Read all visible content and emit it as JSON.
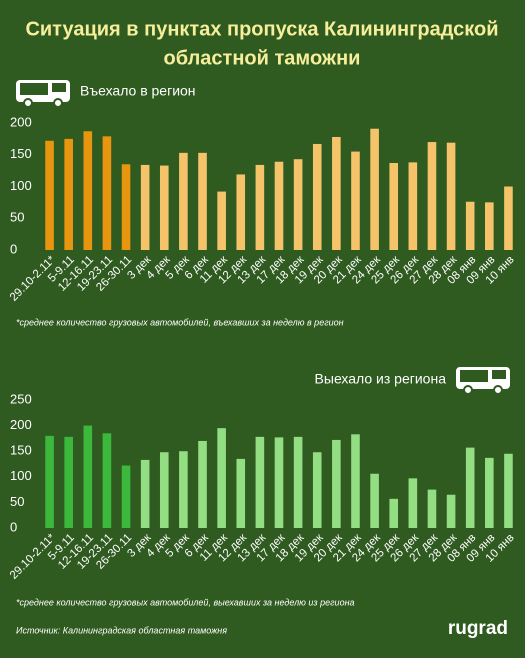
{
  "title_line1": "Ситуация в пунктах пропуска Калининградской",
  "title_line2": "областной таможни",
  "source": "Источник: Калининградская областная таможня",
  "logo": "rugrad",
  "chart_data": [
    {
      "type": "bar",
      "title": "Въехало в регион",
      "note": "*среднее количество грузовых автомобилей, въехавших за неделю в регион",
      "categories": [
        "29.10-2.11*",
        "5-9.11",
        "12-16.11",
        "19-23.11",
        "26-30.11",
        "3 дек",
        "4 дек",
        "5 дек",
        "6 дек",
        "11 дек",
        "12 дек",
        "13 дек",
        "17 дек",
        "18 дек",
        "19 дек",
        "20 дек",
        "21 дек",
        "24 дек",
        "25 дек",
        "26 дек",
        "27 дек",
        "28 дек",
        "08 янв",
        "09 янв",
        "10 янв"
      ],
      "values": [
        172,
        175,
        187,
        179,
        135,
        134,
        133,
        153,
        153,
        92,
        119,
        134,
        139,
        143,
        167,
        178,
        155,
        191,
        137,
        138,
        170,
        169,
        76,
        75,
        100
      ],
      "colors": [
        "#e8950f",
        "#e8950f",
        "#e8950f",
        "#e8950f",
        "#e8950f",
        "#f5c46a",
        "#f5c46a",
        "#f5c46a",
        "#f5c46a",
        "#f5c46a",
        "#f5c46a",
        "#f5c46a",
        "#f5c46a",
        "#f5c46a",
        "#f5c46a",
        "#f5c46a",
        "#f5c46a",
        "#f5c46a",
        "#f5c46a",
        "#f5c46a",
        "#f5c46a",
        "#f5c46a",
        "#f5c46a",
        "#f5c46a",
        "#f5c46a"
      ],
      "ylim": [
        0,
        200
      ],
      "yticks": [
        0,
        50,
        100,
        150,
        200
      ]
    },
    {
      "type": "bar",
      "title": "Выехало из региона",
      "note": "*среднее количество грузовых автомобилей, выехавших за неделю из региона",
      "categories": [
        "29.10-2.11*",
        "5-9.11",
        "12-16.11",
        "19-23.11",
        "26-30.11",
        "3 дек",
        "4 дек",
        "5 дек",
        "6 дек",
        "11 дек",
        "12 дек",
        "13 дек",
        "17 дек",
        "18 дек",
        "19 дек",
        "20 дек",
        "21 дек",
        "24 дек",
        "25 дек",
        "26 дек",
        "27 дек",
        "28 дек",
        "08 янв",
        "09 янв",
        "10 янв"
      ],
      "values": [
        180,
        178,
        200,
        185,
        122,
        133,
        148,
        150,
        170,
        195,
        135,
        178,
        177,
        178,
        148,
        172,
        183,
        106,
        57,
        97,
        75,
        65,
        157,
        137,
        145
      ],
      "colors": [
        "#3cb93c",
        "#3cb93c",
        "#3cb93c",
        "#3cb93c",
        "#3cb93c",
        "#93dd82",
        "#93dd82",
        "#93dd82",
        "#93dd82",
        "#93dd82",
        "#93dd82",
        "#93dd82",
        "#93dd82",
        "#93dd82",
        "#93dd82",
        "#93dd82",
        "#93dd82",
        "#93dd82",
        "#93dd82",
        "#93dd82",
        "#93dd82",
        "#93dd82",
        "#93dd82",
        "#93dd82",
        "#93dd82"
      ],
      "ylim": [
        0,
        250
      ],
      "yticks": [
        0,
        50,
        100,
        150,
        200,
        250
      ]
    }
  ]
}
